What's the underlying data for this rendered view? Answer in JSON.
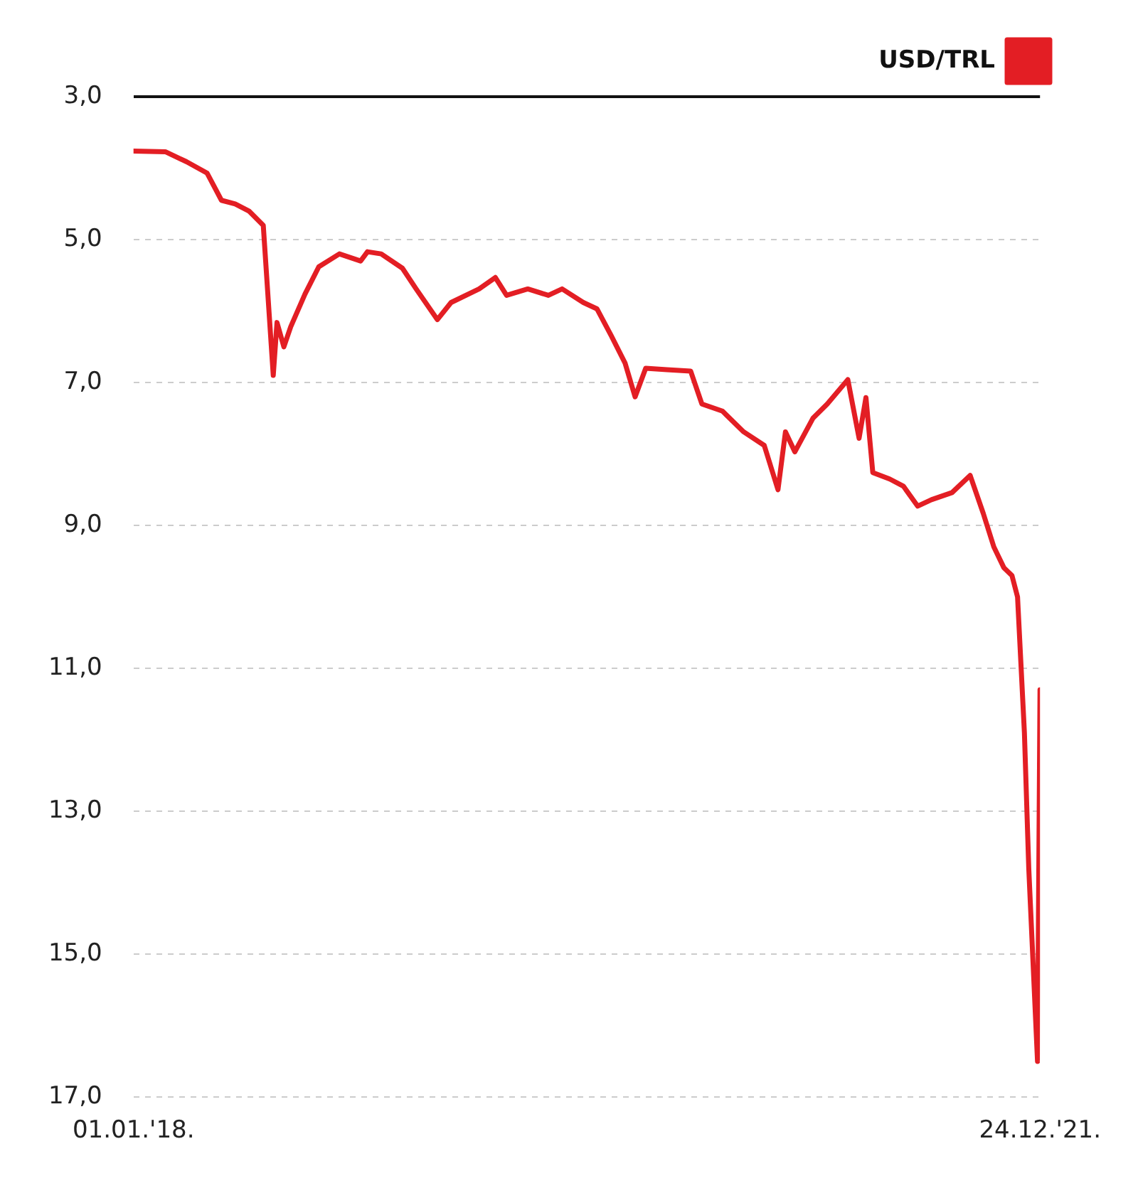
{
  "chart_data": {
    "type": "line",
    "legend": "top right",
    "grid": "y",
    "marker": "none",
    "line_style": "solid",
    "xlim": [
      "2018-01-01",
      "2021-12-24"
    ],
    "xticks": [
      {
        "value": "2018-01-01",
        "label": "01.01.'18."
      },
      {
        "value": "2021-12-24",
        "label": "24.12.'21."
      }
    ],
    "ylim": [
      17,
      3
    ],
    "yticks": [
      {
        "value": 3,
        "label": "3,0"
      },
      {
        "value": 5,
        "label": "5,0"
      },
      {
        "value": 7,
        "label": "7,0"
      },
      {
        "value": 9,
        "label": "9,0"
      },
      {
        "value": 11,
        "label": "11,0"
      },
      {
        "value": 13,
        "label": "13,0"
      },
      {
        "value": 15,
        "label": "15,0"
      },
      {
        "value": 17,
        "label": "17,0"
      }
    ],
    "x": [
      "2018-01-01",
      "2018-02-21",
      "2018-03-27",
      "2018-04-29",
      "2018-05-22",
      "2018-06-13",
      "2018-07-05",
      "2018-07-28",
      "2018-08-13",
      "2018-08-19",
      "2018-08-30",
      "2018-09-10",
      "2018-10-03",
      "2018-10-25",
      "2018-11-27",
      "2018-12-31",
      "2019-01-11",
      "2019-02-02",
      "2019-03-08",
      "2019-03-30",
      "2019-05-03",
      "2019-05-25",
      "2019-07-09",
      "2019-08-04",
      "2019-08-22",
      "2019-09-25",
      "2019-10-28",
      "2019-11-19",
      "2019-12-23",
      "2020-01-14",
      "2020-02-06",
      "2020-02-28",
      "2020-03-15",
      "2020-04-01",
      "2020-05-05",
      "2020-06-12",
      "2020-06-30",
      "2020-08-02",
      "2020-09-05",
      "2020-10-08",
      "2020-10-30",
      "2020-11-11",
      "2020-11-26",
      "2020-12-25",
      "2021-01-17",
      "2021-02-19",
      "2021-03-09",
      "2021-03-20",
      "2021-03-31",
      "2021-04-27",
      "2021-05-19",
      "2021-06-11",
      "2021-07-03",
      "2021-08-05",
      "2021-09-03",
      "2021-09-24",
      "2021-10-11",
      "2021-10-27",
      "2021-11-09",
      "2021-11-18",
      "2021-11-29",
      "2021-12-06",
      "2021-12-20",
      "2021-12-24"
    ],
    "series": [
      {
        "name": "USD/TRL",
        "color": "#e31e24",
        "values": [
          3.76,
          3.77,
          3.91,
          4.07,
          4.45,
          4.5,
          4.6,
          4.8,
          6.9,
          6.16,
          6.5,
          6.22,
          5.76,
          5.38,
          5.2,
          5.3,
          5.17,
          5.2,
          5.4,
          5.69,
          6.12,
          5.88,
          5.69,
          5.53,
          5.78,
          5.69,
          5.78,
          5.69,
          5.88,
          5.97,
          6.35,
          6.73,
          7.2,
          6.8,
          6.82,
          6.84,
          7.3,
          7.4,
          7.69,
          7.88,
          8.5,
          7.69,
          7.97,
          7.5,
          7.3,
          6.96,
          7.78,
          7.21,
          8.26,
          8.35,
          8.45,
          8.73,
          8.64,
          8.54,
          8.3,
          8.83,
          9.3,
          9.59,
          9.7,
          10.0,
          11.9,
          13.8,
          16.5,
          11.3
        ]
      }
    ]
  }
}
